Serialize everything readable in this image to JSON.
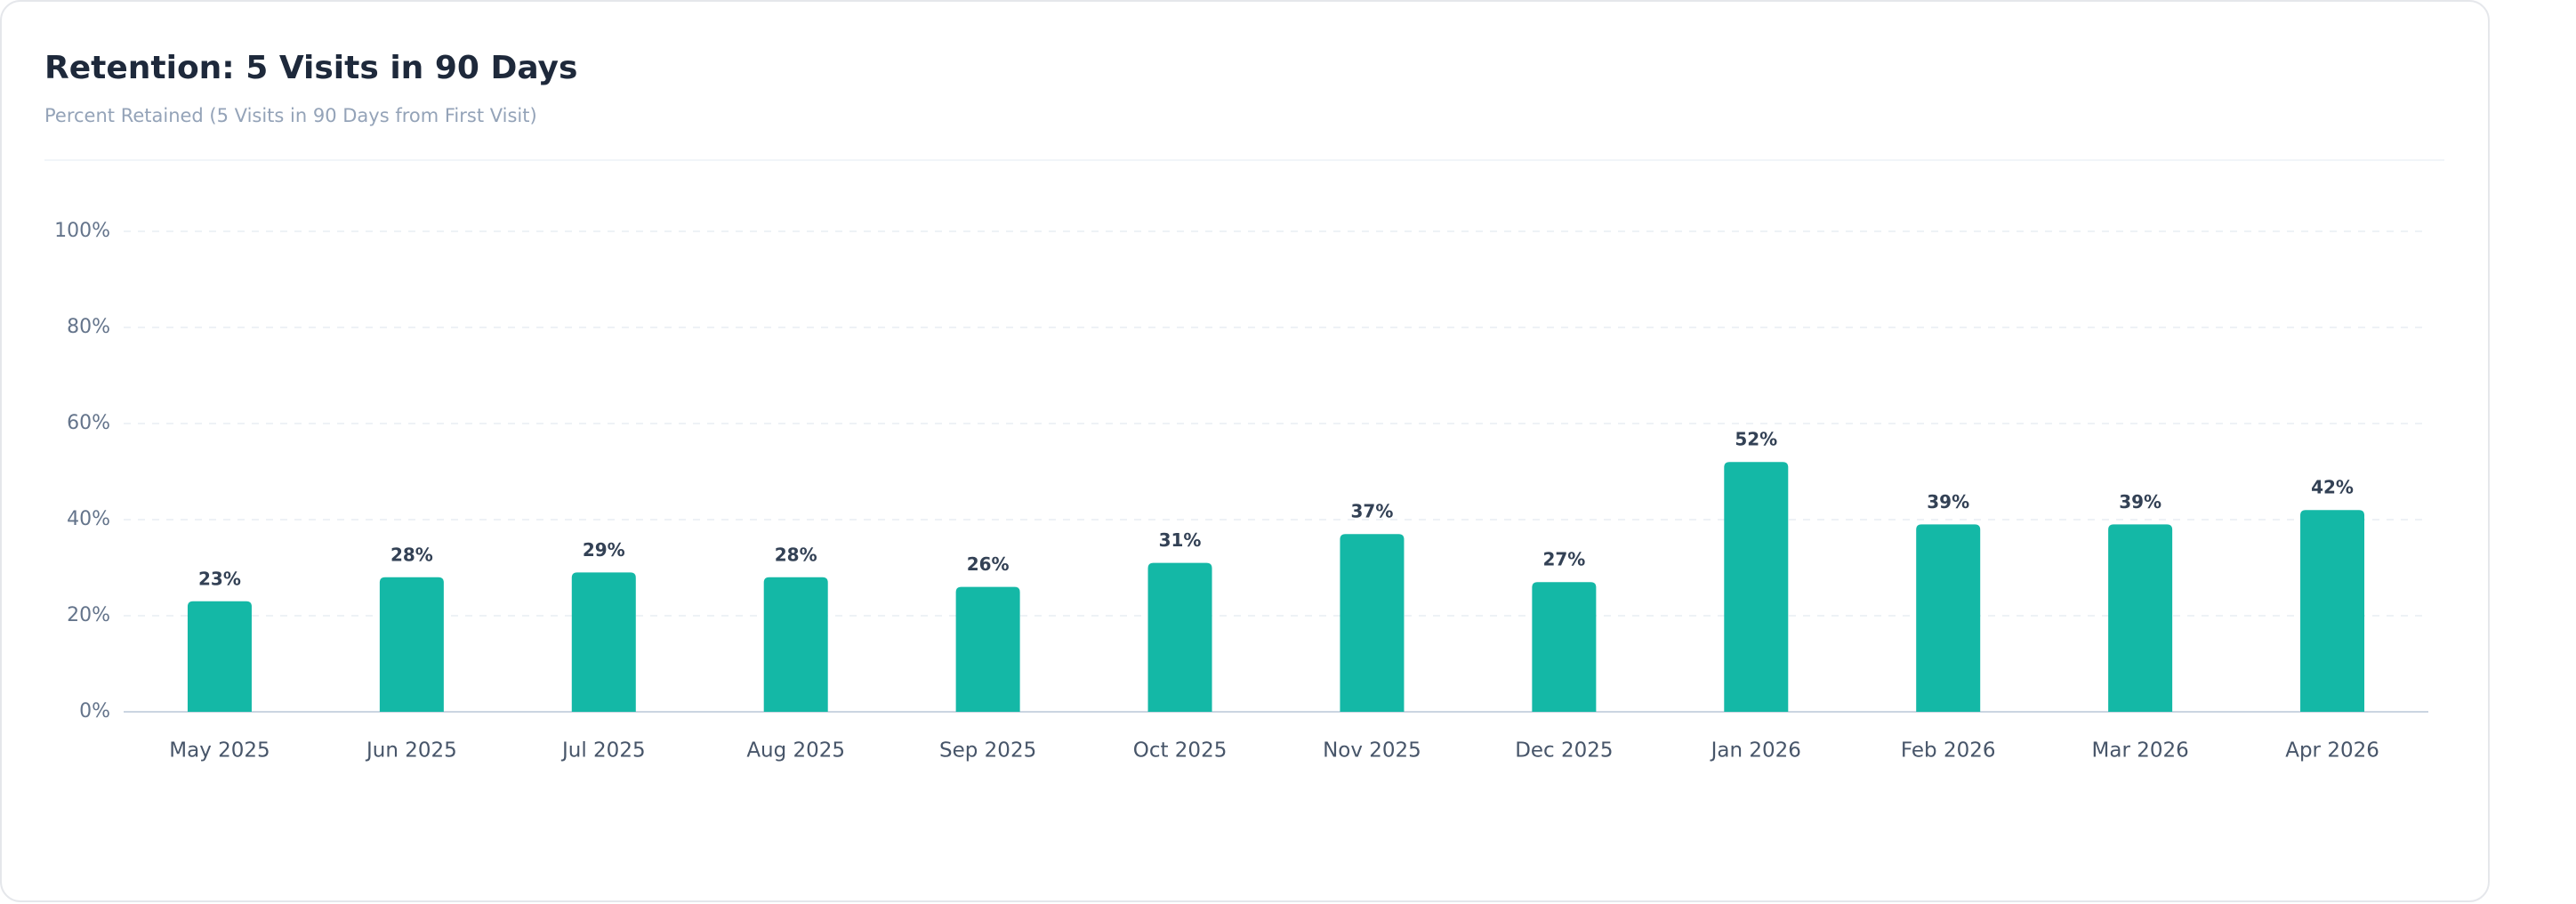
{
  "chart_data": {
    "type": "bar",
    "title": "Retention: 5 Visits in 90 Days",
    "subtitle": "Percent Retained (5 Visits in 90 Days from First Visit)",
    "categories": [
      "May 2025",
      "Jun 2025",
      "Jul 2025",
      "Aug 2025",
      "Sep 2025",
      "Oct 2025",
      "Nov 2025",
      "Dec 2025",
      "Jan 2026",
      "Feb 2026",
      "Mar 2026",
      "Apr 2026"
    ],
    "values": [
      23,
      28,
      29,
      28,
      26,
      31,
      37,
      27,
      52,
      39,
      39,
      42
    ],
    "value_labels": [
      "23%",
      "28%",
      "29%",
      "28%",
      "26%",
      "31%",
      "37%",
      "27%",
      "52%",
      "39%",
      "39%",
      "42%"
    ],
    "color": "#14b8a6",
    "ylim": [
      0,
      100
    ],
    "yticks": [
      {
        "value": 0,
        "label": "0%"
      },
      {
        "value": 20,
        "label": "20%"
      },
      {
        "value": 40,
        "label": "40%"
      },
      {
        "value": 60,
        "label": "60%"
      },
      {
        "value": 80,
        "label": "80%"
      },
      {
        "value": 100,
        "label": "100%"
      }
    ],
    "grid": true
  }
}
